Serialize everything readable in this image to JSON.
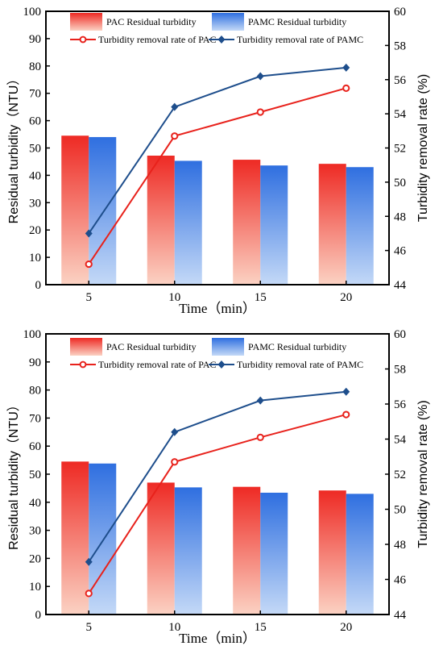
{
  "chart_data": [
    {
      "type": "bar",
      "categories": [
        "5",
        "10",
        "15",
        "20"
      ],
      "xlabel": "Time（min）",
      "ylabel": "Residual turbidity（NTU）",
      "y2label": "Turbidity removal rate (%)",
      "ylim": [
        0,
        100
      ],
      "y2lim": [
        44,
        60
      ],
      "yticks": [
        "0",
        "10",
        "20",
        "30",
        "40",
        "50",
        "60",
        "70",
        "80",
        "90",
        "100"
      ],
      "y2ticks": [
        "44",
        "46",
        "48",
        "50",
        "52",
        "54",
        "56",
        "58",
        "60"
      ],
      "bar_series": [
        {
          "name": "PAC Residual turbidity",
          "values": [
            54.5,
            47.2,
            45.7,
            44.2
          ]
        },
        {
          "name": "PAMC Residual turbidity",
          "values": [
            54.0,
            45.3,
            43.6,
            43.0
          ]
        }
      ],
      "line_series": [
        {
          "name": "Turbidity removal rate of PAC",
          "axis": "right",
          "values": [
            45.2,
            52.7,
            54.1,
            55.5
          ]
        },
        {
          "name": "Turbidity removal rate of PAMC",
          "axis": "right",
          "values": [
            47.0,
            54.4,
            56.2,
            56.7
          ]
        }
      ],
      "legend": "top",
      "grid": false
    },
    {
      "type": "bar",
      "categories": [
        "5",
        "10",
        "15",
        "20"
      ],
      "xlabel": "Time（min）",
      "ylabel": "Residual turbidity（NTU）",
      "y2label": "Turbidity removal rate (%)",
      "ylim": [
        0,
        100
      ],
      "y2lim": [
        44,
        60
      ],
      "yticks": [
        "0",
        "10",
        "20",
        "30",
        "40",
        "50",
        "60",
        "70",
        "80",
        "90",
        "100"
      ],
      "y2ticks": [
        "44",
        "46",
        "48",
        "50",
        "52",
        "54",
        "56",
        "58",
        "60"
      ],
      "bar_series": [
        {
          "name": "PAC Residual turbidity",
          "values": [
            54.5,
            47.0,
            45.5,
            44.2
          ]
        },
        {
          "name": "PAMC Residual turbidity",
          "values": [
            53.8,
            45.3,
            43.4,
            43.0
          ]
        }
      ],
      "line_series": [
        {
          "name": "Turbidity removal rate of PAC",
          "axis": "right",
          "values": [
            45.2,
            52.7,
            54.1,
            55.4
          ]
        },
        {
          "name": "Turbidity removal rate of PAMC",
          "axis": "right",
          "values": [
            47.0,
            54.4,
            56.2,
            56.7
          ]
        }
      ],
      "legend": "top",
      "grid": false
    }
  ],
  "colors": {
    "pac_bar_top": "#ee2a24",
    "pac_bar_bottom": "#fbd2c3",
    "pamc_bar_top": "#2f6fe0",
    "pamc_bar_bottom": "#c4d9f7",
    "pac_line": "#e8221c",
    "pamc_line": "#1e4e8c",
    "axis": "#000000"
  }
}
